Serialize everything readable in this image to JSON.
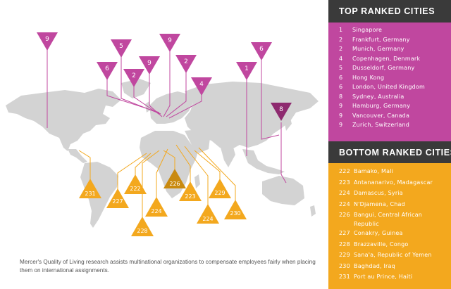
{
  "colors": {
    "top": "#c0479f",
    "top_dark": "#8e2a6f",
    "bottom": "#f3a81e",
    "bottom_dark": "#c98a10",
    "header": "#3a3a3a",
    "land": "#d3d3d3"
  },
  "top_panel": {
    "title": "TOP RANKED CITIES",
    "items": [
      {
        "rank": "1",
        "city": "Singapore"
      },
      {
        "rank": "2",
        "city": "Frankfurt, Germany"
      },
      {
        "rank": "2",
        "city": "Munich, Germany"
      },
      {
        "rank": "4",
        "city": "Copenhagen, Denmark"
      },
      {
        "rank": "5",
        "city": "Dusseldorf, Germany"
      },
      {
        "rank": "6",
        "city": "Hong Kong"
      },
      {
        "rank": "6",
        "city": "London, United Kingdom"
      },
      {
        "rank": "8",
        "city": "Sydney, Australia"
      },
      {
        "rank": "9",
        "city": "Hamburg, Germany"
      },
      {
        "rank": "9",
        "city": "Vancouver, Canada"
      },
      {
        "rank": "9",
        "city": "Zurich, Switzerland"
      }
    ]
  },
  "bottom_panel": {
    "title": "BOTTOM RANKED CITIES",
    "items": [
      {
        "rank": "222",
        "city": "Bamako, Mali"
      },
      {
        "rank": "223",
        "city": "Antananarivo, Madagascar"
      },
      {
        "rank": "224",
        "city": "Damascus, Syria"
      },
      {
        "rank": "224",
        "city": "N'Djamena, Chad"
      },
      {
        "rank": "226",
        "city": "Bangui, Central African Republic"
      },
      {
        "rank": "227",
        "city": "Conakry, Guinea"
      },
      {
        "rank": "228",
        "city": "Brazzaville, Congo"
      },
      {
        "rank": "229",
        "city": "Sana'a, Republic of Yemen"
      },
      {
        "rank": "230",
        "city": "Baghdad, Iraq"
      },
      {
        "rank": "231",
        "city": "Port au Prince, Haiti"
      }
    ]
  },
  "map": {
    "top_pins": [
      "9",
      "5",
      "9",
      "6",
      "2",
      "9",
      "2",
      "4",
      "1",
      "6",
      "8"
    ],
    "bottom_pins": [
      "231",
      "227",
      "222",
      "226",
      "224",
      "223",
      "229",
      "228",
      "224",
      "230"
    ]
  },
  "caption": "Mercer's Quality of Living research assists multinational organizations to compensate employees fairly when placing them on international assignments."
}
